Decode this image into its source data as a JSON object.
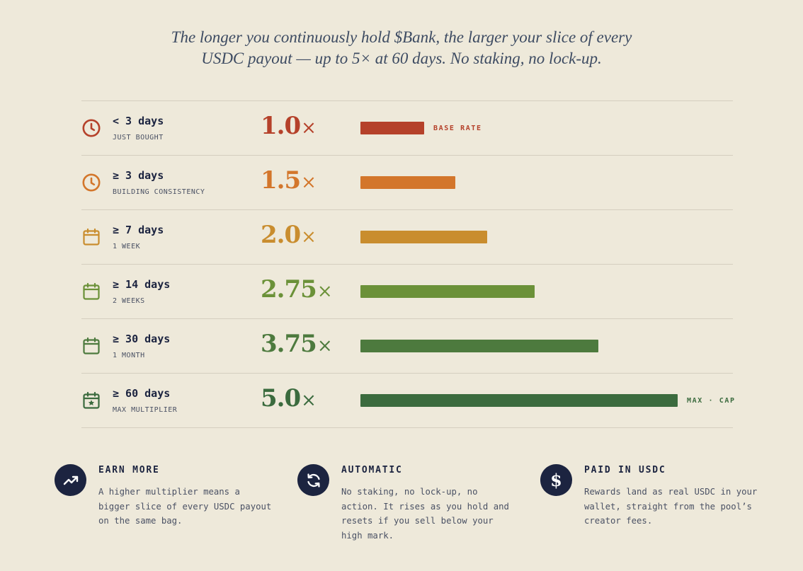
{
  "intro": {
    "line1": "The longer you continuously hold $Bank, the larger your slice of every",
    "line2": "USDC payout — up to 5× at 60 days. No staking, no lock-up."
  },
  "chart_data": {
    "type": "bar",
    "orientation": "horizontal",
    "categories": [
      "< 3 days",
      "≥ 3 days",
      "≥ 7 days",
      "≥ 14 days",
      "≥ 30 days",
      "≥ 60 days"
    ],
    "values": [
      1.0,
      1.5,
      2.0,
      2.75,
      3.75,
      5.0
    ],
    "xlim": [
      0,
      5.0
    ],
    "grid": false,
    "legend": "none"
  },
  "tiers": [
    {
      "days": "< 3 days",
      "sub": "JUST BOUGHT",
      "mult": "1.0",
      "x": "×",
      "value": 1.0,
      "tag": "BASE RATE",
      "color": "#B5412A",
      "icon": "clock-icon"
    },
    {
      "days": "≥ 3 days",
      "sub": "BUILDING CONSISTENCY",
      "mult": "1.5",
      "x": "×",
      "value": 1.5,
      "tag": "",
      "color": "#D3762B",
      "icon": "clock-icon"
    },
    {
      "days": "≥ 7 days",
      "sub": "1 WEEK",
      "mult": "2.0",
      "x": "×",
      "value": 2.0,
      "tag": "",
      "color": "#C98D2E",
      "icon": "calendar-icon"
    },
    {
      "days": "≥ 14 days",
      "sub": "2 WEEKS",
      "mult": "2.75",
      "x": "×",
      "value": 2.75,
      "tag": "",
      "color": "#6B9138",
      "icon": "calendar-icon"
    },
    {
      "days": "≥ 30 days",
      "sub": "1 MONTH",
      "mult": "3.75",
      "x": "×",
      "value": 3.75,
      "tag": "",
      "color": "#4D7A3E",
      "icon": "calendar-icon"
    },
    {
      "days": "≥ 60 days",
      "sub": "MAX MULTIPLIER",
      "mult": "5.0",
      "x": "×",
      "value": 5.0,
      "tag": "MAX · CAP",
      "color": "#3B6B3E",
      "icon": "calendar-star-icon"
    }
  ],
  "features": [
    {
      "title": "EARN MORE",
      "icon": "trend-up-icon",
      "lines": [
        "A higher multiplier means a",
        "bigger slice of every USDC payout",
        "on the same bag."
      ]
    },
    {
      "title": "AUTOMATIC",
      "icon": "refresh-icon",
      "lines": [
        "No staking, no lock-up, no",
        "action. It rises as you hold and",
        "resets if you sell below your",
        "high mark."
      ]
    },
    {
      "title": "PAID IN USDC",
      "icon": "dollar-icon",
      "glyph": "$",
      "lines": [
        "Rewards land as real USDC in your",
        "wallet, straight from the pool’s",
        "creator fees."
      ]
    }
  ],
  "colors": {
    "background": "#EEE9DA",
    "navy": "#1C2440",
    "divider": "#D4CEBF",
    "muted_text": "#4A5164"
  }
}
